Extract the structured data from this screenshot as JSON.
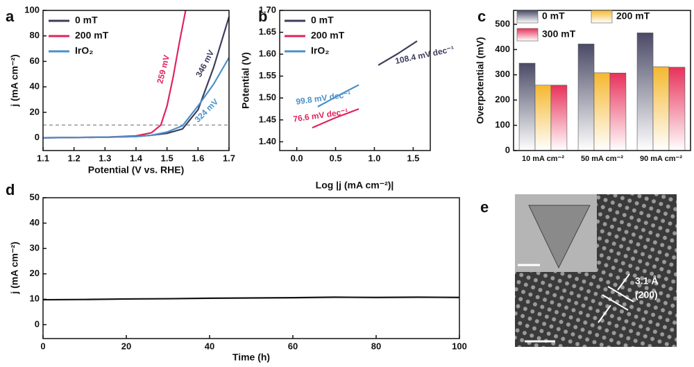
{
  "chart_data": [
    {
      "type": "line",
      "panel_label": "a",
      "x_label": "Potential (V vs. RHE)",
      "y_label": "j (mA cm⁻²)",
      "xlim": [
        1.1,
        1.7
      ],
      "xticks": [
        1.1,
        1.2,
        1.3,
        1.4,
        1.5,
        1.6,
        1.7
      ],
      "ylim": [
        -10,
        100
      ],
      "yticks": [
        0,
        20,
        40,
        60,
        80,
        100
      ],
      "hline": 10,
      "series": [
        {
          "name": "0 mT",
          "color": "#3d3d5c",
          "x": [
            1.1,
            1.3,
            1.4,
            1.45,
            1.5,
            1.55,
            1.6,
            1.65,
            1.7
          ],
          "values": [
            0,
            0.5,
            1,
            2,
            3.5,
            7,
            22,
            55,
            95
          ]
        },
        {
          "name": "200 mT",
          "color": "#e0245e",
          "x": [
            1.1,
            1.3,
            1.4,
            1.45,
            1.48,
            1.5,
            1.52,
            1.54,
            1.56
          ],
          "values": [
            0,
            0.5,
            1.5,
            4,
            10,
            25,
            48,
            75,
            100
          ]
        },
        {
          "name": "IrO₂",
          "color": "#4a90c8",
          "x": [
            1.1,
            1.3,
            1.4,
            1.45,
            1.5,
            1.55,
            1.6,
            1.65,
            1.7
          ],
          "values": [
            0,
            0.5,
            1,
            2,
            4.5,
            9.5,
            25,
            42,
            63
          ]
        }
      ],
      "annotations": [
        "259 mV",
        "346 mV",
        "324 mV"
      ]
    },
    {
      "type": "line",
      "panel_label": "b",
      "x_label": "Log |j (mA cm⁻²)|",
      "y_label": "Potential (V)",
      "xlim": [
        -0.22,
        1.72
      ],
      "xticks": [
        {
          "value": 0,
          "label": "0.0"
        },
        0.5,
        {
          "value": 1,
          "label": "1.0"
        },
        1.5
      ],
      "ylim": [
        1.38,
        1.7
      ],
      "yticks": [
        {
          "value": 1.4,
          "label": "1.40"
        },
        1.45,
        {
          "value": 1.5,
          "label": "1.50"
        },
        1.55,
        {
          "value": 1.6,
          "label": "1.60"
        },
        1.65,
        {
          "value": 1.7,
          "label": "1.70"
        }
      ],
      "series": [
        {
          "name": "0 mT",
          "color": "#3d3d5c",
          "x": [
            1.05,
            1.3,
            1.55
          ],
          "values": [
            1.575,
            1.601,
            1.63
          ]
        },
        {
          "name": "200 mT",
          "color": "#e0245e",
          "x": [
            0.2,
            0.5,
            0.8
          ],
          "values": [
            1.432,
            1.455,
            1.475
          ]
        },
        {
          "name": "IrO₂",
          "color": "#4a90c8",
          "x": [
            0.27,
            0.55,
            0.8
          ],
          "values": [
            1.48,
            1.507,
            1.53
          ]
        }
      ],
      "annotations": [
        "108.4 mV dec⁻¹",
        "76.6 mV dec⁻¹",
        "99.8 mV dec⁻¹"
      ]
    },
    {
      "type": "bar",
      "panel_label": "c",
      "y_label": "Overpotential (mV)",
      "categories": [
        "10 mA cm⁻²",
        "50 mA cm⁻²",
        "90 mA cm⁻²"
      ],
      "ylim": [
        0,
        555
      ],
      "yticks": [
        0,
        100,
        200,
        300,
        400,
        500
      ],
      "series": [
        {
          "name": "0 mT",
          "color": "#4a4a66",
          "values": [
            346,
            422,
            466
          ]
        },
        {
          "name": "200 mT",
          "color": "#f5b830",
          "values": [
            259,
            308,
            332
          ]
        },
        {
          "name": "300 mT",
          "color": "#e8315a",
          "values": [
            259,
            307,
            330
          ]
        }
      ]
    },
    {
      "type": "line",
      "panel_label": "d",
      "x_label": "Time (h)",
      "y_label": "j (mA cm⁻²)",
      "xlim": [
        0,
        100
      ],
      "xticks": [
        0,
        20,
        40,
        60,
        80,
        100
      ],
      "ylim": [
        -5.5,
        50
      ],
      "yticks": [
        0,
        10,
        20,
        30,
        40,
        50
      ],
      "series": [
        {
          "color": "#111111",
          "x": [
            0,
            10,
            20,
            30,
            40,
            50,
            60,
            70,
            80,
            90,
            100
          ],
          "values": [
            9.8,
            9.9,
            10.1,
            10.2,
            10.4,
            10.5,
            10.6,
            10.8,
            10.7,
            10.8,
            10.7
          ]
        }
      ]
    }
  ],
  "image": {
    "panel_label": "e",
    "annotations": [
      "3.1 Å",
      "(200)"
    ]
  }
}
